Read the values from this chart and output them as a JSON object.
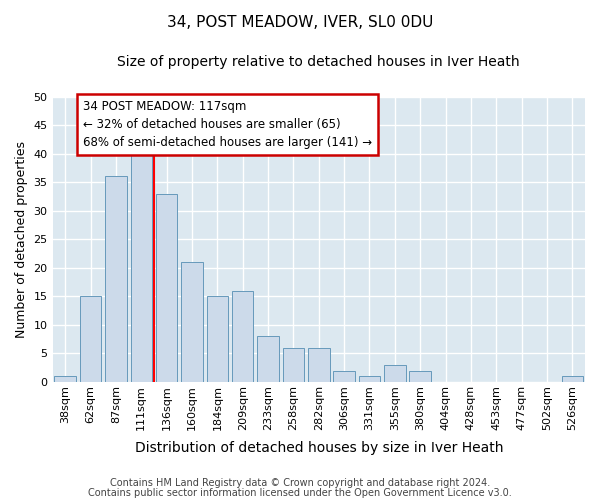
{
  "title": "34, POST MEADOW, IVER, SL0 0DU",
  "subtitle": "Size of property relative to detached houses in Iver Heath",
  "xlabel": "Distribution of detached houses by size in Iver Heath",
  "ylabel": "Number of detached properties",
  "categories": [
    "38sqm",
    "62sqm",
    "87sqm",
    "111sqm",
    "136sqm",
    "160sqm",
    "184sqm",
    "209sqm",
    "233sqm",
    "258sqm",
    "282sqm",
    "306sqm",
    "331sqm",
    "355sqm",
    "380sqm",
    "404sqm",
    "428sqm",
    "453sqm",
    "477sqm",
    "502sqm",
    "526sqm"
  ],
  "values": [
    1,
    15,
    36,
    41,
    33,
    21,
    15,
    16,
    8,
    6,
    6,
    2,
    1,
    3,
    2,
    0,
    0,
    0,
    0,
    0,
    1
  ],
  "bar_color": "#ccdaea",
  "bar_edge_color": "#6699bb",
  "red_line_x": 3.5,
  "annotation_line1": "34 POST MEADOW: 117sqm",
  "annotation_line2": "← 32% of detached houses are smaller (65)",
  "annotation_line3": "68% of semi-detached houses are larger (141) →",
  "annotation_box_color": "#ffffff",
  "annotation_box_edge": "#cc0000",
  "ylim": [
    0,
    50
  ],
  "yticks": [
    0,
    5,
    10,
    15,
    20,
    25,
    30,
    35,
    40,
    45,
    50
  ],
  "background_color": "#dce8f0",
  "grid_color": "#ffffff",
  "footer_line1": "Contains HM Land Registry data © Crown copyright and database right 2024.",
  "footer_line2": "Contains public sector information licensed under the Open Government Licence v3.0.",
  "title_fontsize": 11,
  "subtitle_fontsize": 10,
  "xlabel_fontsize": 10,
  "ylabel_fontsize": 9,
  "tick_fontsize": 8,
  "annotation_fontsize": 8.5,
  "footer_fontsize": 7
}
